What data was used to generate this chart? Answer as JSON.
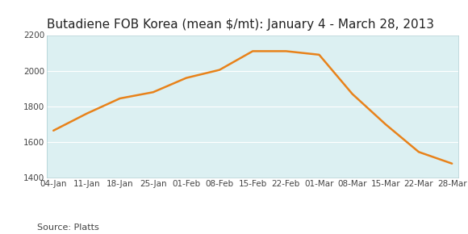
{
  "title": "Butadiene FOB Korea (mean $/mt): January 4 - March 28, 2013",
  "source_label": "Source: Platts",
  "x_labels": [
    "04-Jan",
    "11-Jan",
    "18-Jan",
    "25-Jan",
    "01-Feb",
    "08-Feb",
    "15-Feb",
    "22-Feb",
    "01-Mar",
    "08-Mar",
    "15-Mar",
    "22-Mar",
    "28-Mar"
  ],
  "y_values": [
    1665,
    1760,
    1845,
    1880,
    1960,
    2005,
    2110,
    2110,
    2090,
    1870,
    1700,
    1545,
    1480
  ],
  "line_color": "#E8821A",
  "line_width": 1.8,
  "background_color": "#FFFFFF",
  "plot_bg_color": "#DCF0F2",
  "ylim": [
    1400,
    2200
  ],
  "yticks": [
    1400,
    1600,
    1800,
    2000,
    2200
  ],
  "title_fontsize": 11,
  "source_fontsize": 8,
  "tick_fontsize": 7.5,
  "grid_color": "#FFFFFF",
  "border_color": "#AACCD0"
}
